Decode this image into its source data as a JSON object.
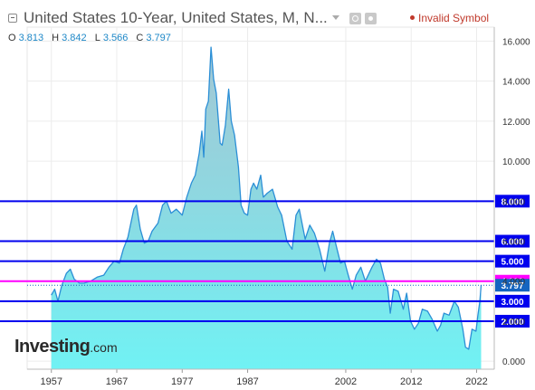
{
  "header": {
    "title": "United States 10-Year, United States, M, N...",
    "status": "Invalid Symbol",
    "status_color": "#c0392b"
  },
  "ohlc": [
    {
      "key": "O",
      "value": "3.813"
    },
    {
      "key": "H",
      "value": "3.842"
    },
    {
      "key": "L",
      "value": "3.566"
    },
    {
      "key": "C",
      "value": "3.797"
    }
  ],
  "logo": {
    "main": "Investing",
    "tld": ".com"
  },
  "colors": {
    "line": "#2b8fd6",
    "fill_top": "#9fc9d6",
    "fill_bottom": "#6ff0f2",
    "level_line": "#0000ee",
    "level_highlight": "#ff00ff",
    "current_price_label": "#1565c0"
  },
  "chart_data": {
    "type": "area",
    "x_ticks": [
      "1957",
      "1967",
      "1977",
      "1987",
      "2002",
      "2012",
      "2022"
    ],
    "y_ticks": [
      "16.000",
      "14.000",
      "12.000",
      "10.000",
      "8.000",
      "6.000",
      "4.000",
      "2.000",
      "0.000"
    ],
    "ylim": [
      -0.4,
      16.7
    ],
    "xlim": [
      1953.3,
      2024.7
    ],
    "y_axis_side": "right",
    "grid": true,
    "levels": [
      {
        "value": 8.0,
        "label": "8.000",
        "color": "#0000ee"
      },
      {
        "value": 6.0,
        "label": "6.000",
        "color": "#0000ee"
      },
      {
        "value": 5.0,
        "label": "5.000",
        "color": "#0000ee"
      },
      {
        "value": 4.0,
        "label": "4.000",
        "color": "#ff00ff"
      },
      {
        "value": 3.0,
        "label": "3.000",
        "color": "#0000ee"
      },
      {
        "value": 2.0,
        "label": "2.000",
        "color": "#0000ee"
      }
    ],
    "current_price": {
      "value": 3.797,
      "label": "3.797"
    },
    "series": [
      {
        "x": [
          1957.0,
          1957.5,
          1958.0,
          1958.6,
          1959.3,
          1959.9,
          1960.5,
          1961.3,
          1962.0,
          1963.0,
          1964.0,
          1965.0,
          1965.8,
          1966.6,
          1967.4,
          1968.0,
          1968.7,
          1969.6,
          1970.0,
          1970.6,
          1971.2,
          1971.8,
          1972.4,
          1973.3,
          1974.0,
          1974.6,
          1975.3,
          1976.1,
          1977.0,
          1977.7,
          1978.4,
          1979.0,
          1979.6,
          1980.0,
          1980.3,
          1980.6,
          1981.0,
          1981.4,
          1981.8,
          1982.2,
          1982.8,
          1983.1,
          1983.6,
          1984.1,
          1984.5,
          1985.0,
          1985.6,
          1986.0,
          1986.5,
          1987.0,
          1987.5,
          1987.9,
          1988.4,
          1989.0,
          1989.4,
          1990.0,
          1990.8,
          1991.6,
          1992.2,
          1993.0,
          1993.8,
          1994.4,
          1994.9,
          1995.8,
          1996.5,
          1997.2,
          1998.0,
          1998.8,
          1999.5,
          2000.0,
          2000.6,
          2001.2,
          2001.8,
          2002.3,
          2003.0,
          2003.6,
          2004.3,
          2005.0,
          2006.0,
          2006.7,
          2007.3,
          2007.9,
          2008.4,
          2008.8,
          2009.3,
          2010.0,
          2010.8,
          2011.3,
          2011.9,
          2012.5,
          2013.1,
          2013.7,
          2014.5,
          2015.2,
          2016.0,
          2016.5,
          2017.0,
          2017.8,
          2018.6,
          2019.2,
          2019.9,
          2020.3,
          2020.8,
          2021.3,
          2021.9,
          2022.2,
          2022.5,
          2022.7
        ],
        "y": [
          3.3,
          3.6,
          3.0,
          3.8,
          4.4,
          4.6,
          4.1,
          3.9,
          3.9,
          4.0,
          4.2,
          4.3,
          4.7,
          5.0,
          4.9,
          5.6,
          6.2,
          7.6,
          7.8,
          6.6,
          5.9,
          6.0,
          6.5,
          6.9,
          7.8,
          8.0,
          7.4,
          7.6,
          7.3,
          8.2,
          8.9,
          9.3,
          10.4,
          11.5,
          10.2,
          12.6,
          13.0,
          15.7,
          14.1,
          13.4,
          10.9,
          10.8,
          11.8,
          13.6,
          12.0,
          11.3,
          9.7,
          7.8,
          7.4,
          7.3,
          8.6,
          8.9,
          8.6,
          9.3,
          8.2,
          8.4,
          8.6,
          7.7,
          7.3,
          6.0,
          5.6,
          7.3,
          7.6,
          6.1,
          6.8,
          6.4,
          5.6,
          4.5,
          5.9,
          6.5,
          5.7,
          4.9,
          5.0,
          4.4,
          3.6,
          4.3,
          4.7,
          4.0,
          4.7,
          5.1,
          4.9,
          4.1,
          3.7,
          2.4,
          3.6,
          3.5,
          2.6,
          3.4,
          2.0,
          1.6,
          1.9,
          2.6,
          2.5,
          2.1,
          1.5,
          1.8,
          2.4,
          2.3,
          3.0,
          2.7,
          1.6,
          0.7,
          0.6,
          1.6,
          1.5,
          2.3,
          3.0,
          3.8
        ]
      }
    ]
  }
}
